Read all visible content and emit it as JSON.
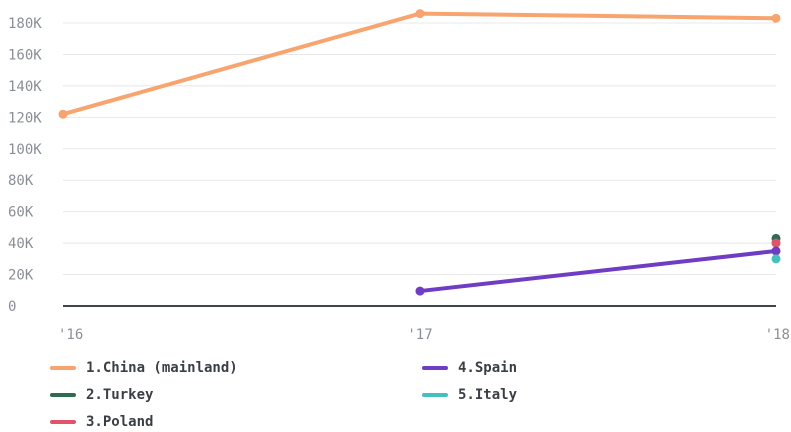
{
  "chart_data": {
    "type": "line",
    "categories": [
      "'16",
      "'17",
      "'18"
    ],
    "y_ticks": [
      "0",
      "20K",
      "40K",
      "60K",
      "80K",
      "100K",
      "120K",
      "140K",
      "160K",
      "180K"
    ],
    "ylim": [
      0,
      190000
    ],
    "grid": true,
    "legend_position": "bottom",
    "series": [
      {
        "name": "1.China (mainland)",
        "color": "#f7a46f",
        "values": [
          122000,
          186000,
          183000
        ]
      },
      {
        "name": "2.Turkey",
        "color": "#2f6b53",
        "values": [
          null,
          null,
          43000
        ]
      },
      {
        "name": "3.Poland",
        "color": "#e0546a",
        "values": [
          null,
          null,
          40000
        ]
      },
      {
        "name": "4.Spain",
        "color": "#6f3cc4",
        "values": [
          null,
          9500,
          35000
        ]
      },
      {
        "name": "5.Italy",
        "color": "#45c0bd",
        "values": [
          null,
          null,
          30000
        ]
      }
    ]
  }
}
